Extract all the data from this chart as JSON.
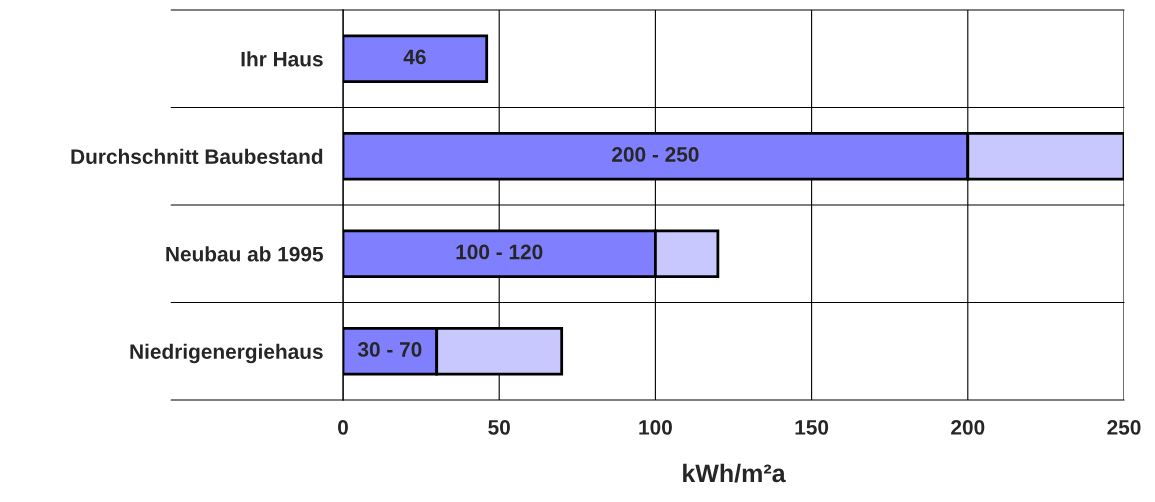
{
  "chart_data": {
    "type": "bar",
    "orientation": "horizontal",
    "stacked": true,
    "categories": [
      "Ihr Haus",
      "Durchschnitt Baubestand",
      "Neubau ab 1995",
      "Niedrigenergiehaus"
    ],
    "series": [
      {
        "color": "#8080ff",
        "values": [
          46,
          200,
          100,
          30
        ],
        "value_labels": [
          "46",
          "200 - 250",
          "100 - 120",
          "30 - 70"
        ]
      },
      {
        "color": "#c8c8ff",
        "values": [
          null,
          50,
          20,
          40
        ]
      }
    ],
    "xlim": [
      0,
      250
    ],
    "xticks": [
      0,
      50,
      100,
      150,
      200,
      250
    ],
    "xlabel": "kWh/m²a",
    "grid": true,
    "legend": false
  }
}
